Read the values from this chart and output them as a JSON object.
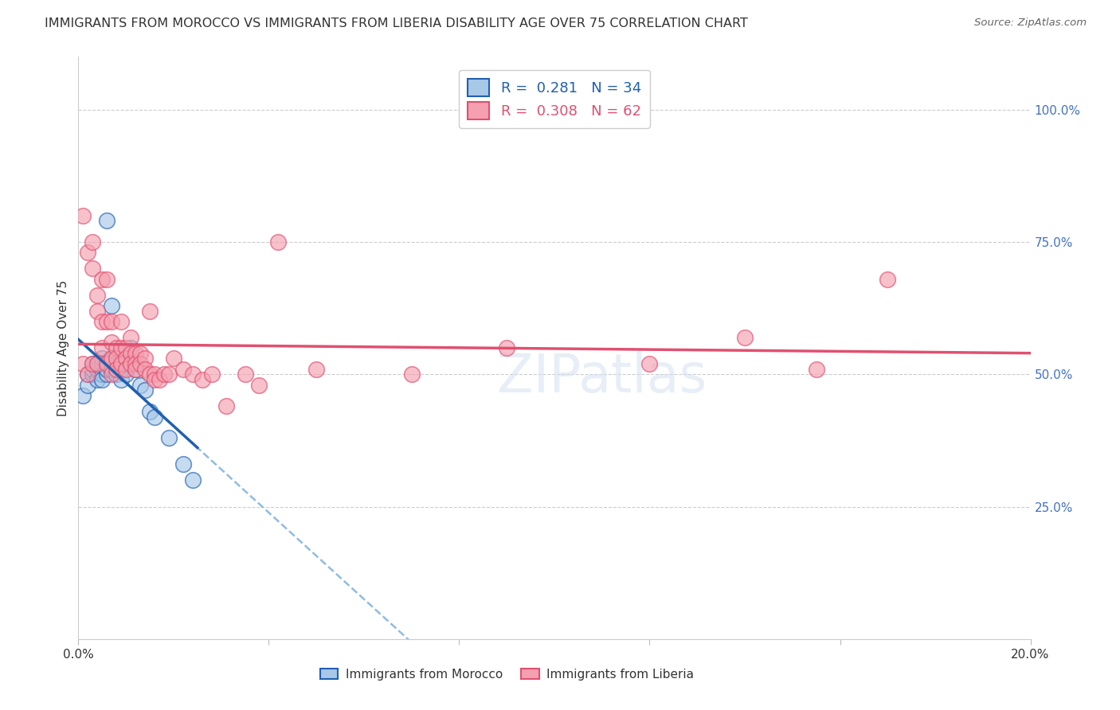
{
  "title": "IMMIGRANTS FROM MOROCCO VS IMMIGRANTS FROM LIBERIA DISABILITY AGE OVER 75 CORRELATION CHART",
  "source": "Source: ZipAtlas.com",
  "ylabel": "Disability Age Over 75",
  "legend_label_1": "Immigrants from Morocco",
  "legend_label_2": "Immigrants from Liberia",
  "r1": 0.281,
  "n1": 34,
  "r2": 0.308,
  "n2": 62,
  "xlim": [
    0.0,
    0.2
  ],
  "ylim": [
    0.0,
    1.1
  ],
  "y_ticks_right": [
    0.25,
    0.5,
    0.75,
    1.0
  ],
  "y_tick_labels_right": [
    "25.0%",
    "50.0%",
    "75.0%",
    "100.0%"
  ],
  "color_morocco": "#a8c8e8",
  "color_liberia": "#f4a0b0",
  "color_line_morocco": "#2060b0",
  "color_line_liberia": "#e05070",
  "color_dashed": "#90bce0",
  "morocco_x": [
    0.001,
    0.002,
    0.002,
    0.003,
    0.003,
    0.003,
    0.004,
    0.004,
    0.004,
    0.005,
    0.005,
    0.005,
    0.005,
    0.006,
    0.006,
    0.006,
    0.007,
    0.007,
    0.007,
    0.008,
    0.008,
    0.009,
    0.009,
    0.01,
    0.01,
    0.011,
    0.012,
    0.013,
    0.014,
    0.015,
    0.016,
    0.019,
    0.022,
    0.024
  ],
  "morocco_y": [
    0.46,
    0.5,
    0.48,
    0.5,
    0.51,
    0.52,
    0.49,
    0.51,
    0.52,
    0.5,
    0.52,
    0.49,
    0.53,
    0.5,
    0.51,
    0.79,
    0.63,
    0.51,
    0.53,
    0.5,
    0.52,
    0.49,
    0.51,
    0.5,
    0.52,
    0.55,
    0.51,
    0.48,
    0.47,
    0.43,
    0.42,
    0.38,
    0.33,
    0.3
  ],
  "liberia_x": [
    0.001,
    0.001,
    0.002,
    0.002,
    0.003,
    0.003,
    0.003,
    0.004,
    0.004,
    0.004,
    0.005,
    0.005,
    0.005,
    0.006,
    0.006,
    0.006,
    0.007,
    0.007,
    0.007,
    0.007,
    0.008,
    0.008,
    0.008,
    0.009,
    0.009,
    0.009,
    0.01,
    0.01,
    0.01,
    0.011,
    0.011,
    0.011,
    0.012,
    0.012,
    0.012,
    0.013,
    0.013,
    0.014,
    0.014,
    0.015,
    0.015,
    0.016,
    0.016,
    0.017,
    0.018,
    0.019,
    0.02,
    0.022,
    0.024,
    0.026,
    0.028,
    0.031,
    0.035,
    0.038,
    0.042,
    0.05,
    0.07,
    0.09,
    0.12,
    0.14,
    0.155,
    0.17
  ],
  "liberia_y": [
    0.52,
    0.8,
    0.73,
    0.5,
    0.75,
    0.7,
    0.52,
    0.65,
    0.62,
    0.52,
    0.68,
    0.6,
    0.55,
    0.68,
    0.6,
    0.52,
    0.6,
    0.56,
    0.53,
    0.5,
    0.55,
    0.53,
    0.51,
    0.6,
    0.55,
    0.52,
    0.55,
    0.53,
    0.51,
    0.57,
    0.54,
    0.52,
    0.54,
    0.52,
    0.51,
    0.54,
    0.52,
    0.53,
    0.51,
    0.62,
    0.5,
    0.5,
    0.49,
    0.49,
    0.5,
    0.5,
    0.53,
    0.51,
    0.5,
    0.49,
    0.5,
    0.44,
    0.5,
    0.48,
    0.75,
    0.51,
    0.5,
    0.55,
    0.52,
    0.57,
    0.51,
    0.68
  ],
  "background_color": "#ffffff",
  "grid_color": "#cccccc",
  "morocco_line_x_start": 0.0,
  "morocco_line_x_solid_end": 0.025,
  "morocco_line_x_dash_end": 0.2,
  "liberia_line_x_start": 0.0,
  "liberia_line_x_end": 0.2
}
